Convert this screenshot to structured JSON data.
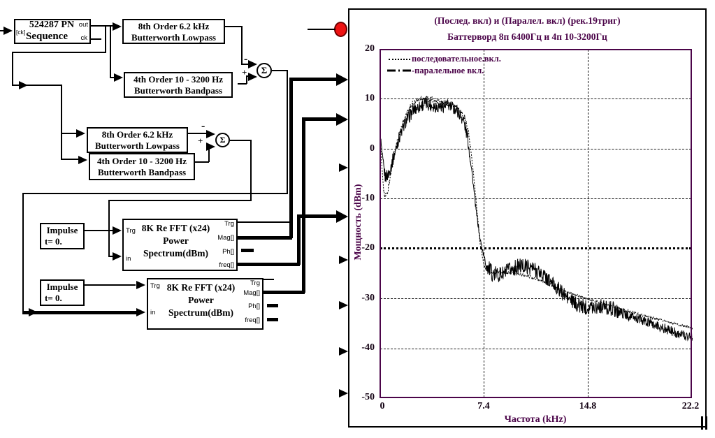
{
  "colors": {
    "accent_purple": "#4b0449",
    "line_black": "#000000",
    "marker_red": "#ee1212"
  },
  "diagram": {
    "pn": {
      "title": "524287 PN",
      "subtitle": "Sequence",
      "port_in": "[ck]",
      "port_out": "out",
      "port_clk": "ck"
    },
    "lp1": {
      "line1": "8th Order 6.2 kHz",
      "line2": "Butterworth Lowpass"
    },
    "bp1": {
      "line1": "4th Order 10 - 3200 Hz",
      "line2": "Butterworth Bandpass"
    },
    "lp2": {
      "line1": "8th Order 6.2 kHz",
      "line2": "Butterworth Lowpass"
    },
    "bp2": {
      "line1": "4th Order 10 - 3200 Hz",
      "line2": "Butterworth Bandpass"
    },
    "impulse1": {
      "line1": "Impulse",
      "line2": "t= 0."
    },
    "impulse2": {
      "line1": "Impulse",
      "line2": "t= 0."
    },
    "fft1": {
      "title": "8K Re FFT (x24)",
      "line2": "Power",
      "line3": "Spectrum(dBm)",
      "in_trg": "Trg",
      "in_label": "in",
      "out_trg": "Trg",
      "out_mag": "Mag[]",
      "out_ph": "Ph[]",
      "out_freq": "freq[]"
    },
    "fft2": {
      "title": "8K Re FFT (x24)",
      "line2": "Power",
      "line3": "Spectrum(dBm)",
      "in_trg": "Trg",
      "in_label": "in",
      "out_trg": "Trg",
      "out_mag": "Mag[]",
      "out_ph": "Ph[]",
      "out_freq": "freq[]"
    },
    "sum": {
      "symbol": "Σ",
      "minus": "-",
      "plus": "+"
    }
  },
  "chart": {
    "title": "(Послед. вкл) и (Паралел. вкл) (рек.19триг)",
    "subtitle": "Баттерворд 8п 6400Гц и 4п 10-3200Гц",
    "ylabel": "Мощность (dBm)",
    "xlabel": "Частота (kHz)",
    "yticks": [
      "20",
      "10",
      "0",
      "-10",
      "-20",
      "-30",
      "-40",
      "-50"
    ],
    "xticks": [
      "0",
      "7.4",
      "14.8",
      "22.2"
    ],
    "legend": [
      {
        "label": "последовательное.вкл.",
        "style": "dotted"
      },
      {
        "label": "-паралельное вкл.",
        "style": "dash-dot"
      }
    ]
  },
  "chart_data": {
    "type": "line",
    "title": "(Послед. вкл) и (Паралел. вкл) (рек.19триг)",
    "subtitle": "Баттерворд 8п 6400Гц и 4п 10-3200Гц",
    "xlabel": "Частота (kHz)",
    "ylabel": "Мощность (dBm)",
    "xlim": [
      0,
      22.2
    ],
    "ylim": [
      -50,
      20
    ],
    "xticks": [
      0,
      7.4,
      14.8,
      22.2
    ],
    "yticks": [
      20,
      10,
      0,
      -10,
      -20,
      -30,
      -40,
      -50
    ],
    "grid": true,
    "legend_position": "top-left",
    "series": [
      {
        "name": "последовательное вкл.",
        "style": "dotted",
        "keypoints": [
          [
            0,
            2
          ],
          [
            0.1,
            -3
          ],
          [
            0.3,
            -9.5
          ],
          [
            0.5,
            -9
          ],
          [
            0.8,
            -4
          ],
          [
            1.2,
            1.5
          ],
          [
            1.7,
            6
          ],
          [
            2.3,
            9.3
          ],
          [
            3,
            10.4
          ],
          [
            3.6,
            10
          ],
          [
            4.3,
            9.4
          ],
          [
            5,
            9
          ],
          [
            5.5,
            8.3
          ],
          [
            6,
            6.5
          ],
          [
            6.3,
            3
          ],
          [
            6.6,
            -4
          ],
          [
            6.9,
            -13
          ],
          [
            7.1,
            -19
          ],
          [
            7.4,
            -23.5
          ],
          [
            7.8,
            -24.8
          ],
          [
            8.5,
            -24.6
          ],
          [
            9.5,
            -24.8
          ],
          [
            10.5,
            -25.4
          ],
          [
            11.5,
            -26.4
          ],
          [
            12.5,
            -27.6
          ],
          [
            13.5,
            -28.8
          ],
          [
            14.8,
            -30
          ],
          [
            16,
            -31
          ],
          [
            17.5,
            -32.3
          ],
          [
            19,
            -33.5
          ],
          [
            20.5,
            -34.6
          ],
          [
            22.2,
            -35.8
          ]
        ],
        "noise": [
          [
            0,
            6.5,
            0.6
          ],
          [
            6.5,
            7.4,
            0.3
          ],
          [
            7.4,
            22.2,
            0.25
          ]
        ]
      },
      {
        "name": "параллельное вкл.",
        "style": "solid",
        "keypoints": [
          [
            0,
            3
          ],
          [
            0.15,
            -2
          ],
          [
            0.35,
            -5.5
          ],
          [
            0.6,
            -5
          ],
          [
            0.9,
            -2
          ],
          [
            1.3,
            2
          ],
          [
            1.8,
            5.5
          ],
          [
            2.4,
            8
          ],
          [
            3.2,
            9.2
          ],
          [
            4,
            8.6
          ],
          [
            4.8,
            8.8
          ],
          [
            5.4,
            8
          ],
          [
            5.9,
            6
          ],
          [
            6.2,
            2.5
          ],
          [
            6.5,
            -4
          ],
          [
            6.8,
            -12
          ],
          [
            7.1,
            -18
          ],
          [
            7.5,
            -23
          ],
          [
            8,
            -25
          ],
          [
            8.7,
            -25
          ],
          [
            9.3,
            -24
          ],
          [
            10,
            -23.3
          ],
          [
            10.7,
            -23.6
          ],
          [
            11.5,
            -25
          ],
          [
            12.3,
            -27
          ],
          [
            13.2,
            -29.5
          ],
          [
            13.9,
            -31
          ],
          [
            14.6,
            -31.6
          ],
          [
            15.6,
            -31.4
          ],
          [
            16.6,
            -32
          ],
          [
            17.6,
            -33.3
          ],
          [
            18.6,
            -34.3
          ],
          [
            19.6,
            -35.3
          ],
          [
            20.6,
            -36.3
          ],
          [
            21.5,
            -37.2
          ],
          [
            22.2,
            -37.6
          ]
        ],
        "noise": [
          [
            0,
            6.4,
            1.3
          ],
          [
            6.4,
            7.5,
            0.6
          ],
          [
            7.5,
            12.5,
            1.6
          ],
          [
            12.5,
            17,
            1.5
          ],
          [
            17,
            22.2,
            1.0
          ]
        ]
      }
    ]
  }
}
